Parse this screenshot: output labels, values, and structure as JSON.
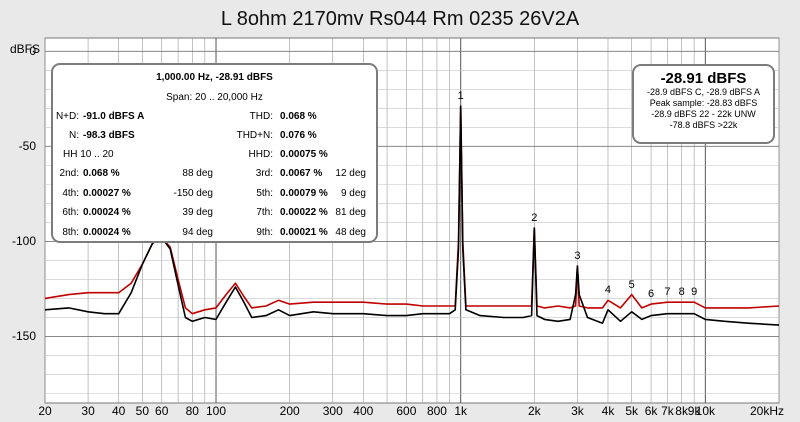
{
  "title": "L 8ohm 2170mv Rs044 Rm 0235 26V2A",
  "unit_label": "dBFS",
  "x_ticks": [
    "20",
    "30",
    "40",
    "50",
    "60",
    "80",
    "100",
    "200",
    "300",
    "400",
    "600",
    "800",
    "1k",
    "2k",
    "3k",
    "4k",
    "5k",
    "6k",
    "7k",
    "8k",
    "9k",
    "10k",
    "20kHz"
  ],
  "y_ticks": [
    "0",
    "-50",
    "-100",
    "-150"
  ],
  "info_panel": {
    "line1": "1,000.00 Hz, -28.91 dBFS",
    "line2": "Span: 20 .. 20,000 Hz",
    "nd_label": "N+D:",
    "nd_value": "-91.0 dBFS A",
    "thd_label": "THD:",
    "thd_value": "0.068 %",
    "n_label": "N:",
    "n_value": "-98.3 dBFS",
    "thdn_label": "THD+N:",
    "thdn_value": "0.076 %",
    "hh_label": "HH 10 .. 20",
    "hhd_label": "HHD:",
    "hhd_value": "0.00075 %",
    "harmonics": [
      {
        "l1": "2nd:",
        "v1": "0.068 %",
        "d1": "88 deg",
        "l2": "3rd:",
        "v2": "0.0067 %",
        "d2": "12 deg"
      },
      {
        "l1": "4th:",
        "v1": "0.00027 %",
        "d1": "-150 deg",
        "l2": "5th:",
        "v2": "0.00079 %",
        "d2": "9 deg"
      },
      {
        "l1": "6th:",
        "v1": "0.00024 %",
        "d1": "39 deg",
        "l2": "7th:",
        "v2": "0.00022 %",
        "d2": "81 deg"
      },
      {
        "l1": "8th:",
        "v1": "0.00024 %",
        "d1": "94 deg",
        "l2": "9th:",
        "v2": "0.00021 %",
        "d2": "48 deg"
      }
    ]
  },
  "level_panel": {
    "big": "-28.91 dBFS",
    "l1": "-28.9 dBFS C, -28.9 dBFS A",
    "l2": "Peak sample: -28.83 dBFS",
    "l3": "-28.9 dBFS 22 - 22k UNW",
    "l4": "-78.8 dBFS >22k"
  },
  "colors": {
    "series_black": "#000000",
    "series_red": "#c00000",
    "grid": "#9a9a9a",
    "plot_bg": "#ffffff"
  },
  "chart_data": {
    "type": "line",
    "x_scale": "log",
    "xlim": [
      20,
      20000
    ],
    "ylim": [
      -185,
      7
    ],
    "grid": true,
    "harmonic_labels": [
      {
        "label": "1",
        "x": 1000,
        "y": -28.9
      },
      {
        "label": "2",
        "x": 2000,
        "y": -93
      },
      {
        "label": "3",
        "x": 3000,
        "y": -113
      },
      {
        "label": "4",
        "x": 4000,
        "y": -131
      },
      {
        "label": "5",
        "x": 5000,
        "y": -128
      },
      {
        "label": "6",
        "x": 6000,
        "y": -133
      },
      {
        "label": "7",
        "x": 7000,
        "y": -132
      },
      {
        "label": "8",
        "x": 8000,
        "y": -132
      },
      {
        "label": "9",
        "x": 9000,
        "y": -132
      }
    ],
    "series": [
      {
        "color": "#c00000",
        "x": [
          20,
          25,
          30,
          35,
          40,
          45,
          50,
          55,
          60,
          65,
          70,
          75,
          80,
          90,
          100,
          110,
          120,
          130,
          140,
          160,
          180,
          200,
          250,
          300,
          350,
          400,
          500,
          600,
          700,
          800,
          900,
          950,
          980,
          1000,
          1020,
          1050,
          1200,
          1500,
          1800,
          1950,
          2000,
          2050,
          2200,
          2500,
          2800,
          2950,
          3000,
          3050,
          3300,
          3800,
          4000,
          4500,
          5000,
          5500,
          6000,
          7000,
          8000,
          9000,
          10000,
          12000,
          15000,
          20000
        ],
        "y": [
          -130,
          -128,
          -127,
          -127,
          -127,
          -122,
          -112,
          -101,
          -98,
          -103,
          -120,
          -135,
          -138,
          -136,
          -135,
          -128,
          -122,
          -129,
          -135,
          -134,
          -131,
          -133,
          -132,
          -132,
          -132,
          -132,
          -133,
          -133,
          -134,
          -134,
          -134,
          -134,
          -100,
          -28.9,
          -100,
          -134,
          -134,
          -134,
          -134,
          -134,
          -93,
          -134,
          -135,
          -134,
          -135,
          -134,
          -113,
          -134,
          -135,
          -135,
          -131,
          -135,
          -128,
          -135,
          -133,
          -132,
          -132,
          -132,
          -135,
          -135,
          -135,
          -134
        ]
      },
      {
        "color": "#000000",
        "x": [
          20,
          25,
          30,
          35,
          40,
          45,
          50,
          55,
          60,
          65,
          70,
          75,
          80,
          90,
          100,
          110,
          120,
          130,
          140,
          160,
          180,
          200,
          250,
          300,
          350,
          400,
          500,
          600,
          700,
          800,
          900,
          950,
          980,
          1000,
          1020,
          1050,
          1200,
          1500,
          1800,
          1950,
          2000,
          2050,
          2200,
          2500,
          2800,
          2950,
          3000,
          3050,
          3300,
          3800,
          4000,
          4500,
          5000,
          5500,
          6000,
          7000,
          8000,
          9000,
          10000,
          12000,
          15000,
          20000
        ],
        "y": [
          -136,
          -135,
          -137,
          -138,
          -138,
          -127,
          -112,
          -101,
          -98,
          -104,
          -123,
          -140,
          -142,
          -140,
          -141,
          -132,
          -124,
          -132,
          -140,
          -139,
          -136,
          -139,
          -137,
          -138,
          -138,
          -138,
          -139,
          -139,
          -138,
          -138,
          -138,
          -136,
          -104,
          -28.9,
          -104,
          -136,
          -139,
          -140,
          -140,
          -139,
          -93,
          -139,
          -141,
          -142,
          -141,
          -128,
          -113,
          -128,
          -140,
          -143,
          -136,
          -142,
          -137,
          -141,
          -139,
          -138,
          -138,
          -138,
          -141,
          -142,
          -143,
          -144
        ]
      }
    ]
  }
}
